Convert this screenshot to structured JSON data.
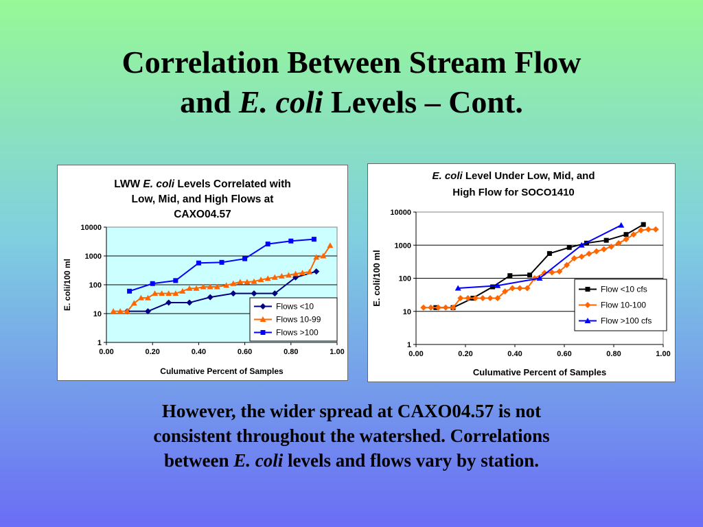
{
  "slide": {
    "title_line1": "Correlation Between Stream Flow",
    "title_line2_a": "and ",
    "title_line2_em": "E. coli",
    "title_line2_b": " Levels – Cont.",
    "caption_line1": "However, the wider spread at CAXO04.57 is not",
    "caption_line2": "consistent throughout the watershed.  Correlations",
    "caption_line3_a": "between ",
    "caption_line3_em": "E. coli",
    "caption_line3_b": " levels and flows vary by station."
  },
  "chart_data": [
    {
      "type": "line",
      "title_parts": [
        "LWW ",
        "E. coli",
        " Levels Correlated with",
        "Low, Mid, and High Flows at",
        "CAXO04.57"
      ],
      "xlabel": "Culumative Percent of Samples",
      "ylabel": "E. coli/100 ml",
      "xlim": [
        0,
        1
      ],
      "ylim": [
        1,
        10000
      ],
      "yscale": "log",
      "xticks": [
        "0.00",
        "0.20",
        "0.40",
        "0.60",
        "0.80",
        "1.00"
      ],
      "yticks": [
        "1",
        "10",
        "100",
        "1000",
        "10000"
      ],
      "grid": "horizontal",
      "legend_position": "bottom-right",
      "plot_bg": "#ccffff",
      "series": [
        {
          "name": "Flows <10",
          "color": "#000080",
          "marker": "diamond",
          "x": [
            0.09,
            0.18,
            0.27,
            0.36,
            0.45,
            0.55,
            0.64,
            0.73,
            0.82,
            0.91
          ],
          "y": [
            12,
            12,
            24,
            24,
            37,
            50,
            50,
            50,
            180,
            290
          ]
        },
        {
          "name": "Flows 10-99",
          "color": "#ff6600",
          "marker": "triangle",
          "x": [
            0.03,
            0.06,
            0.09,
            0.12,
            0.15,
            0.18,
            0.21,
            0.24,
            0.27,
            0.3,
            0.33,
            0.36,
            0.39,
            0.42,
            0.45,
            0.48,
            0.52,
            0.55,
            0.58,
            0.61,
            0.64,
            0.67,
            0.7,
            0.73,
            0.76,
            0.79,
            0.82,
            0.85,
            0.88,
            0.91,
            0.94,
            0.97
          ],
          "y": [
            12,
            12,
            12,
            23,
            35,
            35,
            50,
            50,
            50,
            50,
            60,
            75,
            75,
            85,
            85,
            85,
            95,
            110,
            125,
            125,
            130,
            150,
            165,
            180,
            200,
            215,
            240,
            260,
            280,
            900,
            1000,
            2300
          ]
        },
        {
          "name": "Flows >100",
          "color": "#0000ff",
          "marker": "square",
          "x": [
            0.1,
            0.2,
            0.3,
            0.4,
            0.5,
            0.6,
            0.7,
            0.8,
            0.9
          ],
          "y": [
            60,
            110,
            140,
            570,
            600,
            800,
            2600,
            3300,
            3800
          ]
        }
      ]
    },
    {
      "type": "line",
      "title_parts": [
        "E. coli",
        " Level Under Low, Mid, and",
        "High Flow for SOCO1410"
      ],
      "xlabel": "Culumative Percent of Samples",
      "ylabel": "E. coli/100 ml",
      "xlim": [
        0,
        1
      ],
      "ylim": [
        1,
        10000
      ],
      "yscale": "log",
      "xticks": [
        "0.00",
        "0.20",
        "0.40",
        "0.60",
        "0.80",
        "1.00"
      ],
      "yticks": [
        "1",
        "10",
        "100",
        "1000",
        "10000"
      ],
      "grid": "horizontal",
      "legend_position": "right",
      "plot_bg": "#ffffff",
      "series": [
        {
          "name": "Flow <10 cfs",
          "color": "#000000",
          "marker": "square",
          "x": [
            0.08,
            0.15,
            0.23,
            0.31,
            0.38,
            0.46,
            0.54,
            0.62,
            0.69,
            0.77,
            0.85,
            0.92
          ],
          "y": [
            13,
            13,
            25,
            55,
            120,
            125,
            560,
            850,
            1150,
            1400,
            2100,
            4200
          ]
        },
        {
          "name": "Flow 10-100",
          "color": "#ff6600",
          "marker": "diamond",
          "x": [
            0.03,
            0.06,
            0.09,
            0.12,
            0.15,
            0.18,
            0.21,
            0.24,
            0.27,
            0.3,
            0.33,
            0.36,
            0.39,
            0.42,
            0.45,
            0.48,
            0.52,
            0.55,
            0.58,
            0.61,
            0.64,
            0.67,
            0.7,
            0.73,
            0.76,
            0.79,
            0.82,
            0.85,
            0.88,
            0.91,
            0.94,
            0.97
          ],
          "y": [
            13,
            13,
            13,
            13,
            13,
            25,
            25,
            25,
            25,
            25,
            25,
            40,
            50,
            50,
            50,
            100,
            145,
            150,
            160,
            250,
            400,
            450,
            550,
            650,
            750,
            900,
            1150,
            1500,
            2100,
            2800,
            3000,
            3000
          ]
        },
        {
          "name": "Flow >100 cfs",
          "color": "#0000ff",
          "marker": "triangle",
          "x": [
            0.17,
            0.33,
            0.5,
            0.67,
            0.83
          ],
          "y": [
            50,
            60,
            100,
            1000,
            4000
          ]
        }
      ]
    }
  ]
}
